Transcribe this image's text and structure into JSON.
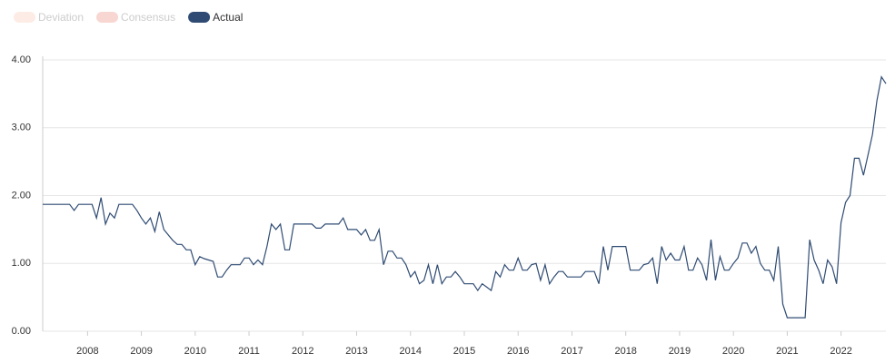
{
  "chart_data": {
    "type": "line",
    "inactive_legend": [
      {
        "name": "Deviation",
        "color": "#fdece5"
      },
      {
        "name": "Consensus",
        "color": "#f8d6d2"
      }
    ],
    "categories": [
      null,
      null,
      null,
      null,
      null,
      null,
      null,
      null,
      null,
      null,
      "2008",
      null,
      null,
      null,
      null,
      null,
      null,
      null,
      null,
      null,
      null,
      null,
      "2009",
      null,
      null,
      null,
      null,
      null,
      null,
      null,
      null,
      null,
      null,
      null,
      "2010",
      null,
      null,
      null,
      null,
      null,
      null,
      null,
      null,
      null,
      null,
      null,
      "2011",
      null,
      null,
      null,
      null,
      null,
      null,
      null,
      null,
      null,
      null,
      null,
      "2012",
      null,
      null,
      null,
      null,
      null,
      null,
      null,
      null,
      null,
      null,
      null,
      "2013",
      null,
      null,
      null,
      null,
      null,
      null,
      null,
      null,
      null,
      null,
      null,
      "2014",
      null,
      null,
      null,
      null,
      null,
      null,
      null,
      null,
      null,
      null,
      null,
      "2015",
      null,
      null,
      null,
      null,
      null,
      null,
      null,
      null,
      null,
      null,
      null,
      "2016",
      null,
      null,
      null,
      null,
      null,
      null,
      null,
      null,
      null,
      null,
      null,
      "2017",
      null,
      null,
      null,
      null,
      null,
      null,
      null,
      null,
      null,
      null,
      null,
      "2018",
      null,
      null,
      null,
      null,
      null,
      null,
      null,
      null,
      null,
      null,
      null,
      "2019",
      null,
      null,
      null,
      null,
      null,
      null,
      null,
      null,
      null,
      null,
      null,
      "2020",
      null,
      null,
      null,
      null,
      null,
      null,
      null,
      null,
      null,
      null,
      null,
      "2021",
      null,
      null,
      null,
      null,
      null,
      null,
      null,
      null,
      null,
      null,
      null,
      "2022",
      null,
      null,
      null,
      null,
      null,
      null,
      null,
      null,
      null,
      null
    ],
    "series": [
      {
        "name": "Actual",
        "color": "#2f4b73",
        "values": [
          1.87,
          1.87,
          1.87,
          1.87,
          1.87,
          1.87,
          1.87,
          1.78,
          1.87,
          1.87,
          1.87,
          1.87,
          1.67,
          1.97,
          1.58,
          1.74,
          1.67,
          1.87,
          1.87,
          1.87,
          1.87,
          1.78,
          1.67,
          1.58,
          1.67,
          1.47,
          1.76,
          1.5,
          1.42,
          1.34,
          1.28,
          1.28,
          1.2,
          1.2,
          0.98,
          1.1,
          1.07,
          1.05,
          1.03,
          0.8,
          0.8,
          0.9,
          0.98,
          0.98,
          0.98,
          1.08,
          1.08,
          0.98,
          1.05,
          0.98,
          1.25,
          1.58,
          1.5,
          1.58,
          1.2,
          1.2,
          1.58,
          1.58,
          1.58,
          1.58,
          1.58,
          1.52,
          1.52,
          1.58,
          1.58,
          1.58,
          1.58,
          1.67,
          1.5,
          1.5,
          1.5,
          1.42,
          1.5,
          1.34,
          1.34,
          1.5,
          0.98,
          1.18,
          1.18,
          1.08,
          1.08,
          0.98,
          0.8,
          0.88,
          0.7,
          0.75,
          0.98,
          0.7,
          0.98,
          0.7,
          0.8,
          0.8,
          0.88,
          0.8,
          0.7,
          0.7,
          0.7,
          0.6,
          0.7,
          0.65,
          0.6,
          0.88,
          0.8,
          0.98,
          0.9,
          0.9,
          1.08,
          0.9,
          0.9,
          0.98,
          1.0,
          0.75,
          0.98,
          0.7,
          0.8,
          0.88,
          0.88,
          0.8,
          0.8,
          0.8,
          0.8,
          0.88,
          0.88,
          0.88,
          0.7,
          1.25,
          0.9,
          1.25,
          1.25,
          1.25,
          1.25,
          0.9,
          0.9,
          0.9,
          0.98,
          1.0,
          1.08,
          0.7,
          1.25,
          1.05,
          1.15,
          1.05,
          1.05,
          1.25,
          0.9,
          0.9,
          1.08,
          0.98,
          0.75,
          1.35,
          0.75,
          1.1,
          0.9,
          0.9,
          1.0,
          1.08,
          1.3,
          1.3,
          1.15,
          1.25,
          1.0,
          0.9,
          0.9,
          0.75,
          1.25,
          0.4,
          0.2,
          0.2,
          0.2,
          0.2,
          0.2,
          1.35,
          1.05,
          0.9,
          0.7,
          1.05,
          0.95,
          0.7,
          1.6,
          1.9,
          2.0,
          2.55,
          2.55,
          2.3,
          2.6,
          2.9,
          3.4,
          3.75,
          3.65
        ]
      }
    ],
    "ylim": [
      0,
      4
    ],
    "yticks": [
      {
        "value": 0,
        "label": "0.00"
      },
      {
        "value": 1,
        "label": "1.00"
      },
      {
        "value": 2,
        "label": "2.00"
      },
      {
        "value": 3,
        "label": "3.00"
      },
      {
        "value": 4,
        "label": "4.00"
      }
    ],
    "grid": true
  }
}
